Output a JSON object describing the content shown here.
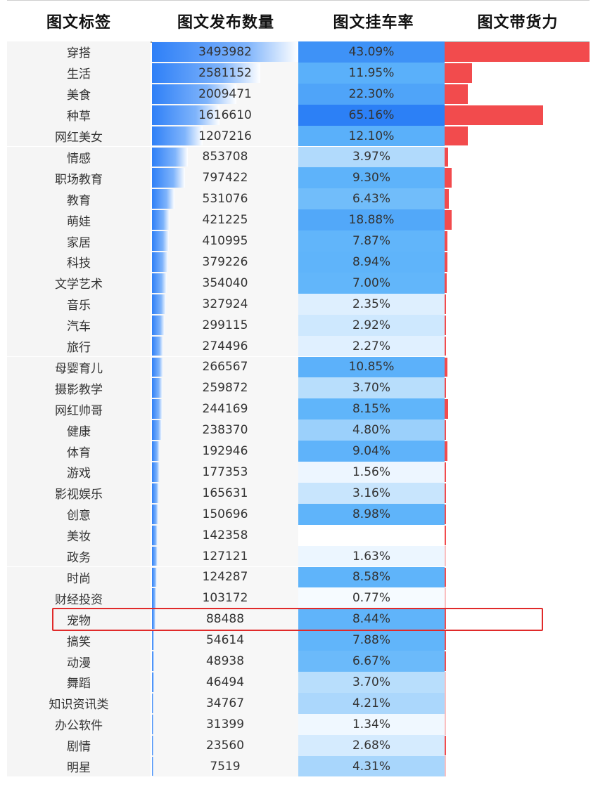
{
  "chart_data": {
    "type": "table",
    "columns": [
      "图文标签",
      "图文发布数量",
      "图文挂车率",
      "图文带货力"
    ],
    "highlighted_row": "宠物",
    "rows": [
      {
        "label": "穿搭",
        "count": 3493982,
        "rate": "43.09%",
        "power": 1.0
      },
      {
        "label": "生活",
        "count": 2581152,
        "rate": "11.95%",
        "power": 0.19
      },
      {
        "label": "美食",
        "count": 2009471,
        "rate": "22.30%",
        "power": 0.16
      },
      {
        "label": "种草",
        "count": 1616610,
        "rate": "65.16%",
        "power": 0.68
      },
      {
        "label": "网红美女",
        "count": 1207216,
        "rate": "12.10%",
        "power": 0.16
      },
      {
        "label": "情感",
        "count": 853708,
        "rate": "3.97%",
        "power": 0.025
      },
      {
        "label": "职场教育",
        "count": 797422,
        "rate": "9.30%",
        "power": 0.05
      },
      {
        "label": "教育",
        "count": 531076,
        "rate": "6.43%",
        "power": 0.03
      },
      {
        "label": "萌娃",
        "count": 421225,
        "rate": "18.88%",
        "power": 0.05
      },
      {
        "label": "家居",
        "count": 410995,
        "rate": "7.87%",
        "power": 0.02
      },
      {
        "label": "科技",
        "count": 379226,
        "rate": "8.94%",
        "power": 0.02
      },
      {
        "label": "文学艺术",
        "count": 354040,
        "rate": "7.00%",
        "power": 0.015
      },
      {
        "label": "音乐",
        "count": 327924,
        "rate": "2.35%",
        "power": 0.008
      },
      {
        "label": "汽车",
        "count": 299115,
        "rate": "2.92%",
        "power": 0.008
      },
      {
        "label": "旅行",
        "count": 274496,
        "rate": "2.27%",
        "power": 0.008
      },
      {
        "label": "母婴育儿",
        "count": 266567,
        "rate": "10.85%",
        "power": 0.02
      },
      {
        "label": "摄影教学",
        "count": 259872,
        "rate": "3.70%",
        "power": 0.008
      },
      {
        "label": "网红帅哥",
        "count": 244169,
        "rate": "8.15%",
        "power": 0.025
      },
      {
        "label": "健康",
        "count": 238370,
        "rate": "4.80%",
        "power": 0.008
      },
      {
        "label": "体育",
        "count": 192946,
        "rate": "9.04%",
        "power": 0.02
      },
      {
        "label": "游戏",
        "count": 177353,
        "rate": "1.56%",
        "power": 0.006
      },
      {
        "label": "影视娱乐",
        "count": 165631,
        "rate": "3.16%",
        "power": 0.006
      },
      {
        "label": "创意",
        "count": 150696,
        "rate": "8.98%",
        "power": 0.01
      },
      {
        "label": "美妆",
        "count": 142358,
        "rate": "",
        "power": 0.008
      },
      {
        "label": "政务",
        "count": 127121,
        "rate": "1.63%",
        "power": 0
      },
      {
        "label": "时尚",
        "count": 124287,
        "rate": "8.58%",
        "power": 0.008
      },
      {
        "label": "财经投资",
        "count": 103172,
        "rate": "0.77%",
        "power": 0
      },
      {
        "label": "宠物",
        "count": 88488,
        "rate": "8.44%",
        "power": 0.006
      },
      {
        "label": "搞笑",
        "count": 54614,
        "rate": "7.88%",
        "power": 0.008
      },
      {
        "label": "动漫",
        "count": 48938,
        "rate": "6.67%",
        "power": 0.008
      },
      {
        "label": "舞蹈",
        "count": 46494,
        "rate": "3.70%",
        "power": 0
      },
      {
        "label": "知识资讯类",
        "count": 34767,
        "rate": "4.21%",
        "power": 0
      },
      {
        "label": "办公软件",
        "count": 31399,
        "rate": "1.34%",
        "power": 0
      },
      {
        "label": "剧情",
        "count": 23560,
        "rate": "2.68%",
        "power": 0.008
      },
      {
        "label": "明星",
        "count": 7519,
        "rate": "4.31%",
        "power": 0
      }
    ]
  }
}
